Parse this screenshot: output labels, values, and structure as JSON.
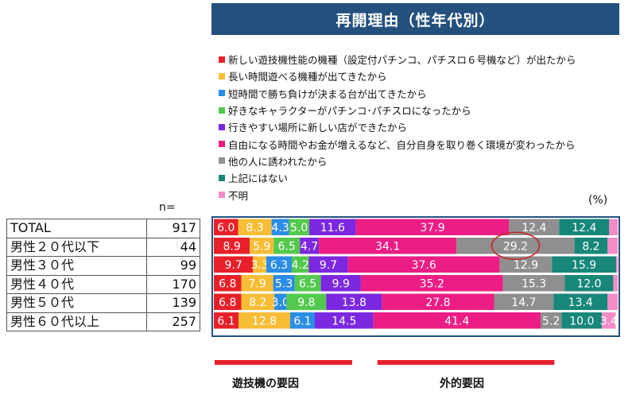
{
  "title": "再開理由（性年代別）",
  "n_label": "n=",
  "unit_label": "(%)",
  "factor_labels": [
    "遊技機の要因",
    "外的要因"
  ],
  "colors": {
    "title_bg": "#24507e",
    "bar_border": "#24507e",
    "factor_bar": "#e8202a",
    "highlight": "#c62828"
  },
  "rows": [
    {
      "label": "TOTAL",
      "n": "917"
    },
    {
      "label": "男性２０代以下",
      "n": "44"
    },
    {
      "label": "男性３０代",
      "n": "99"
    },
    {
      "label": "男性４０代",
      "n": "170"
    },
    {
      "label": "男性５０代",
      "n": "139"
    },
    {
      "label": "男性６０代以上",
      "n": "257"
    }
  ],
  "chart_data": {
    "type": "bar",
    "orientation": "horizontal",
    "stacked": true,
    "title": "再開理由（性年代別）",
    "unit": "(%)",
    "categories": [
      "TOTAL",
      "男性２０代以下",
      "男性３０代",
      "男性４０代",
      "男性５０代",
      "男性６０代以上"
    ],
    "n": [
      917,
      44,
      99,
      170,
      139,
      257
    ],
    "xlim": [
      0,
      100
    ],
    "legend_position": "top",
    "series": [
      {
        "name": "新しい遊技機性能の機種（設定付パチンコ、パチスロ６号機など）が出たから",
        "color": "#e8202a",
        "values": [
          6.0,
          8.9,
          9.7,
          6.8,
          6.8,
          6.1
        ]
      },
      {
        "name": "長い時間遊べる機種が出てきたから",
        "color": "#f7bd36",
        "values": [
          8.3,
          5.9,
          3.3,
          7.9,
          8.2,
          12.8
        ]
      },
      {
        "name": "短時間で勝ち負けが決まる台が出てきたから",
        "color": "#2b8de6",
        "values": [
          4.3,
          0.0,
          6.3,
          5.3,
          3.0,
          6.1
        ]
      },
      {
        "name": "好きなキャラクターがパチンコ･パチスロになったから",
        "color": "#53c94d",
        "values": [
          5.0,
          6.5,
          4.2,
          6.5,
          9.8,
          0.0
        ]
      },
      {
        "name": "行きやすい場所に新しい店ができたから",
        "color": "#7c28e0",
        "values": [
          11.6,
          4.7,
          9.7,
          9.9,
          13.8,
          14.5
        ]
      },
      {
        "name": "自由になる時間やお金が増えるなど、自分自身を取り巻く環境が変わったから",
        "color": "#ec1d84",
        "values": [
          37.9,
          34.1,
          37.6,
          35.2,
          27.8,
          41.4
        ]
      },
      {
        "name": "他の人に誘われたから",
        "color": "#8f8f8f",
        "values": [
          12.4,
          29.2,
          12.9,
          15.3,
          14.7,
          5.2
        ]
      },
      {
        "name": "上記にはない",
        "color": "#17877a",
        "values": [
          12.4,
          8.2,
          15.9,
          12.0,
          13.4,
          10.0
        ]
      },
      {
        "name": "不明",
        "color": "#f58bc8",
        "values": [
          2.1,
          2.5,
          0.4,
          1.1,
          2.5,
          3.4
        ]
      }
    ],
    "data_labels": [
      [
        "6.0",
        "8.3",
        "4.3",
        "5.0",
        "11.6",
        "37.9",
        "12.4",
        "12.4",
        ""
      ],
      [
        "8.9",
        "5.9",
        "",
        "6.5",
        "4.7",
        "34.1",
        "29.2",
        "8.2",
        ""
      ],
      [
        "9.7",
        "3.3",
        "6.3",
        "4.2",
        "9.7",
        "37.6",
        "12.9",
        "15.9",
        ""
      ],
      [
        "6.8",
        "7.9",
        "5.3",
        "6.5",
        "9.9",
        "35.2",
        "15.3",
        "12.0",
        ""
      ],
      [
        "6.8",
        "8.2",
        "3.0",
        "9.8",
        "13.8",
        "27.8",
        "14.7",
        "13.4",
        ""
      ],
      [
        "6.1",
        "12.8",
        "6.1",
        "",
        "14.5",
        "41.4",
        "5.2",
        "10.0",
        "3.4"
      ]
    ],
    "highlighted": {
      "row": 1,
      "series": 6,
      "value": 29.2
    }
  }
}
